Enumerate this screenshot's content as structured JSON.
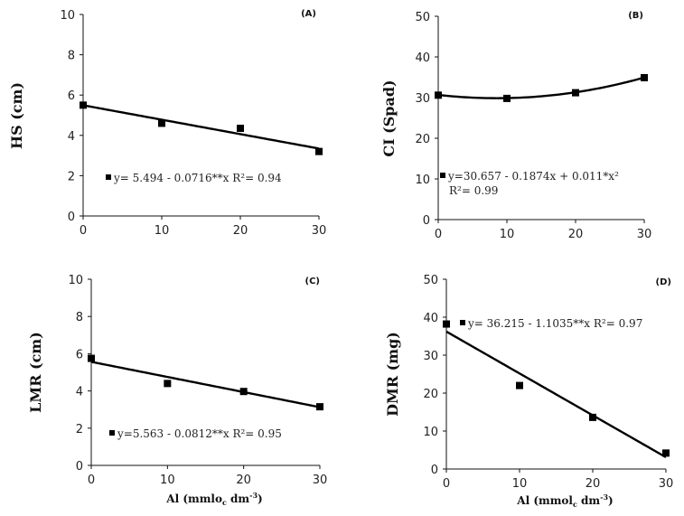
{
  "chart_data": [
    {
      "type": "scatter",
      "panel_label": "(A)",
      "ylabel": "HS (cm)",
      "xlabel": "",
      "xlim": [
        0,
        30
      ],
      "ylim": [
        0,
        10
      ],
      "xticks": [
        0,
        10,
        20,
        30
      ],
      "yticks": [
        0,
        2,
        4,
        6,
        8,
        10
      ],
      "points": {
        "x": [
          0,
          10,
          20,
          30
        ],
        "y": [
          5.5,
          4.6,
          4.35,
          3.2
        ]
      },
      "fit": {
        "model": "linear",
        "coefficients": [
          5.494,
          -0.0716
        ]
      },
      "equation": "y= 5.494 - 0.0716**x",
      "r2_text": "R²= 0.94",
      "grid": false
    },
    {
      "type": "scatter",
      "panel_label": "(B)",
      "ylabel": "CI (Spad)",
      "xlabel": "",
      "xlim": [
        0,
        30
      ],
      "ylim": [
        0,
        50
      ],
      "xticks": [
        0,
        10,
        20,
        30
      ],
      "yticks": [
        0,
        10,
        20,
        30,
        40,
        50
      ],
      "points": {
        "x": [
          0,
          10,
          20,
          30
        ],
        "y": [
          30.6,
          29.8,
          31.2,
          34.9
        ]
      },
      "fit": {
        "model": "quadratic",
        "coefficients": [
          30.657,
          -0.1874,
          0.011
        ]
      },
      "equation": "y=30.657 - 0.1874x + 0.011*x²",
      "r2_text": "R²= 0.99",
      "grid": false
    },
    {
      "type": "scatter",
      "panel_label": "(C)",
      "ylabel": "LMR (cm)",
      "xlabel": "Al (mmlo",
      "xlabel_sub": "c",
      "xlabel_rest": " dm",
      "xlabel_sup": "-3",
      "xlabel_end": ")",
      "xlim": [
        0,
        30
      ],
      "ylim": [
        0,
        10
      ],
      "xticks": [
        0,
        10,
        20,
        30
      ],
      "yticks": [
        0,
        2,
        4,
        6,
        8,
        10
      ],
      "points": {
        "x": [
          0,
          10,
          20,
          30
        ],
        "y": [
          5.75,
          4.4,
          3.97,
          3.15
        ]
      },
      "fit": {
        "model": "linear",
        "coefficients": [
          5.563,
          -0.0812
        ]
      },
      "equation": "y=5.563 - 0.0812**x",
      "r2_text": "R²= 0.95",
      "grid": false
    },
    {
      "type": "scatter",
      "panel_label": "(D)",
      "ylabel": "DMR (mg)",
      "xlabel": "Al (mmol",
      "xlabel_sub": "c",
      "xlabel_rest": " dm",
      "xlabel_sup": "-3",
      "xlabel_end": ")",
      "xlim": [
        0,
        30
      ],
      "ylim": [
        0,
        50
      ],
      "xticks": [
        0,
        10,
        20,
        30
      ],
      "yticks": [
        0,
        10,
        20,
        30,
        40,
        50
      ],
      "points": {
        "x": [
          0,
          10,
          20,
          30
        ],
        "y": [
          38.2,
          22.0,
          13.6,
          4.2
        ]
      },
      "fit": {
        "model": "linear",
        "coefficients": [
          36.215,
          -1.1035
        ]
      },
      "equation": "y= 36.215 - 1.1035**x",
      "r2_text": "R²= 0.97",
      "grid": false
    }
  ]
}
